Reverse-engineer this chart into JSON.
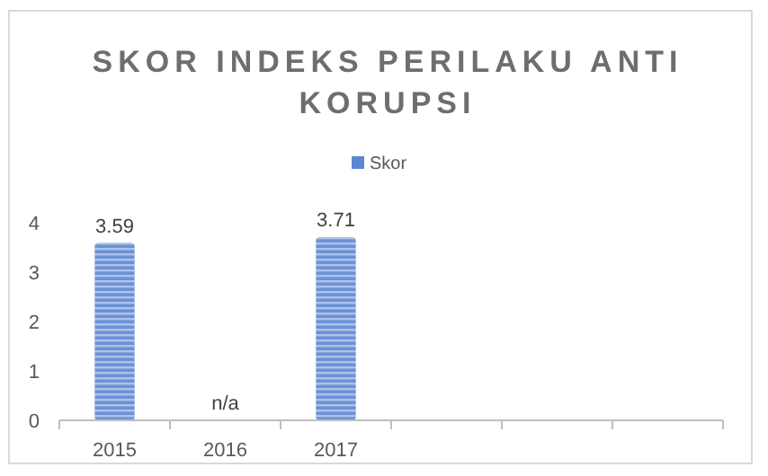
{
  "chart_data": {
    "type": "bar",
    "title": "SKOR INDEKS PERILAKU ANTI KORUPSI",
    "categories": [
      "2015",
      "2016",
      "2017",
      null,
      null,
      null
    ],
    "series": [
      {
        "name": "Skor",
        "color": "#5b86d1",
        "values": [
          3.59,
          null,
          3.71,
          null,
          null,
          null
        ],
        "value_labels": [
          "3.59",
          "n/a",
          "3.71",
          null,
          null,
          null
        ]
      }
    ],
    "ylim": [
      0,
      4
    ],
    "yticks": [
      0,
      1,
      2,
      3,
      4
    ],
    "grid": false,
    "legend": "top"
  }
}
